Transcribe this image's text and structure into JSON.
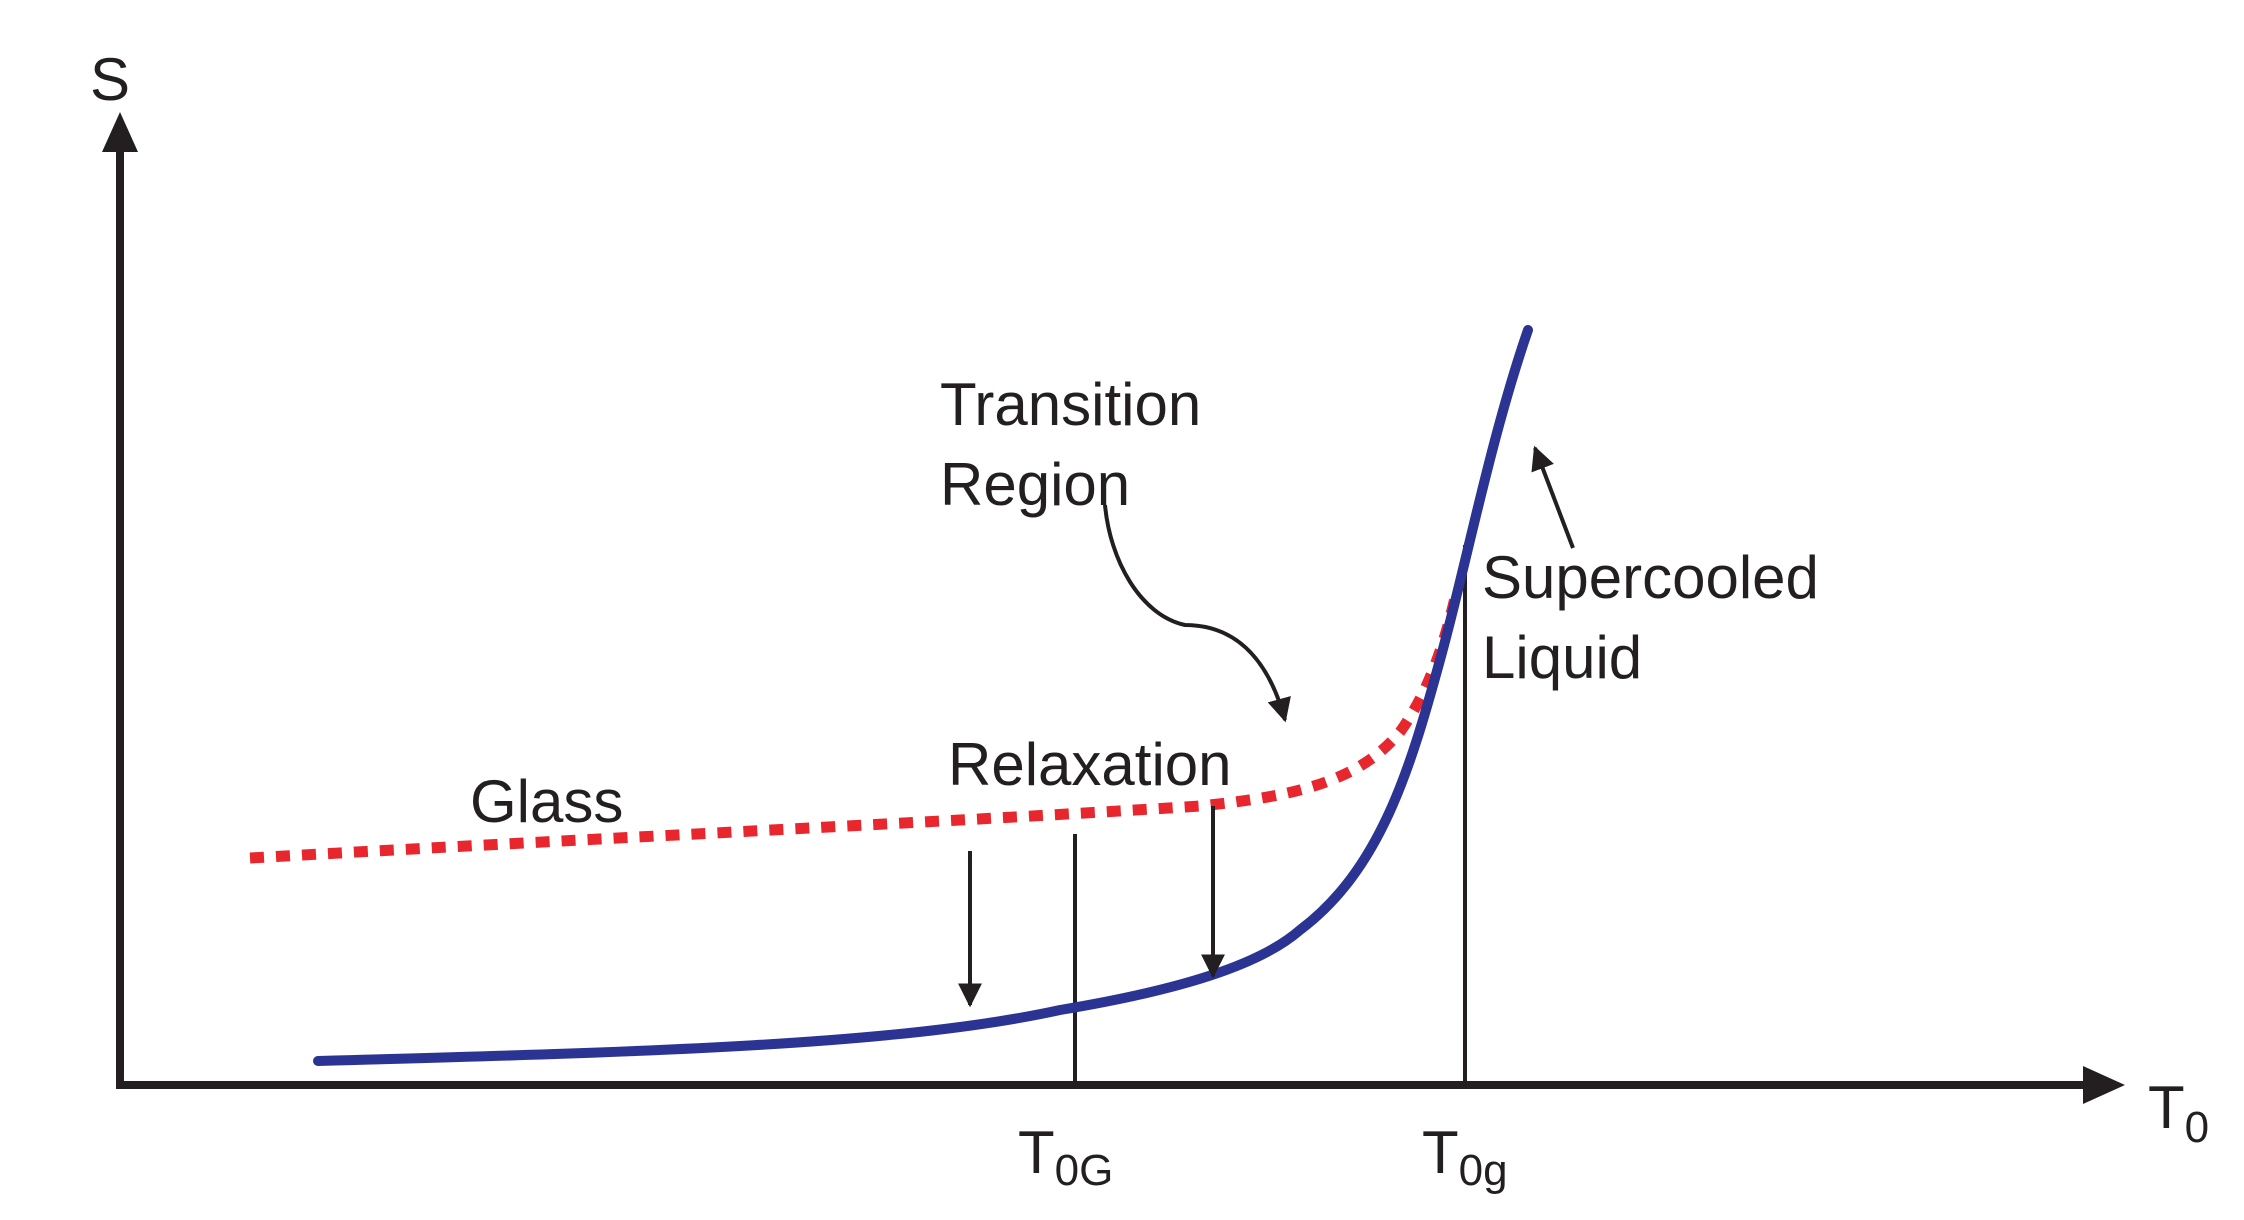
{
  "axes": {
    "y_label": "S",
    "x_label_main": "T",
    "x_label_sub": "0"
  },
  "markers": {
    "t0G_main": "T",
    "t0G_sub": "0G",
    "t0g_main": "T",
    "t0g_sub": "0g"
  },
  "labels": {
    "glass": "Glass",
    "transition_line1": "Transition",
    "transition_line2": "Region",
    "relaxation": "Relaxation",
    "supercooled_line1": "Supercooled",
    "supercooled_line2": "Liquid"
  },
  "colors": {
    "supercooled_curve": "#2b3393",
    "glass_curve": "#e8262d",
    "ink": "#231f20"
  },
  "icons": {
    "axis_arrows": "arrowhead",
    "pointer_arrows": "arrowhead"
  }
}
